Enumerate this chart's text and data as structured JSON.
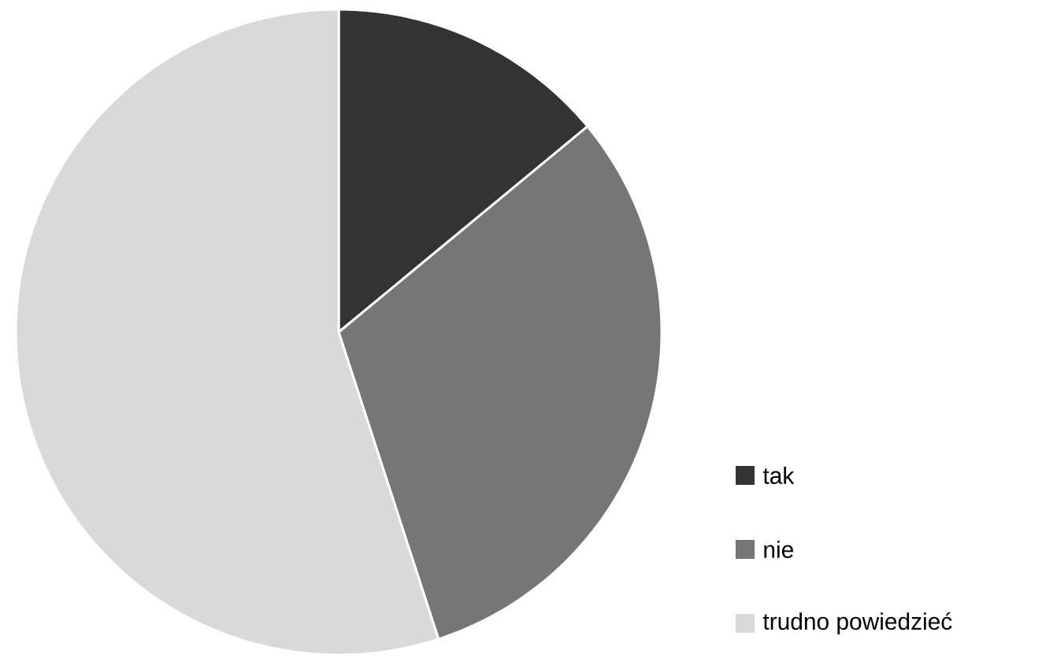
{
  "chart_data": {
    "type": "pie",
    "categories": [
      "tak",
      "nie",
      "trudno powiedzieć"
    ],
    "values": [
      14,
      31,
      55
    ],
    "colors": [
      "#333333",
      "#767676",
      "#d9d9d9"
    ],
    "legend": "bottom right"
  }
}
